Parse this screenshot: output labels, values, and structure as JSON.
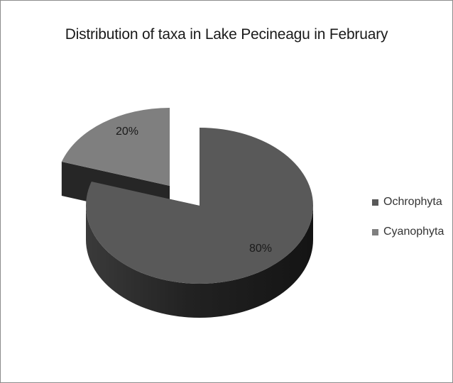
{
  "chart_data": {
    "type": "pie",
    "title": "Distribution of taxa in Lake Pecineagu in February",
    "slices": [
      {
        "name": "Ochrophyta",
        "value": 80,
        "label": "80%",
        "color": "#595959"
      },
      {
        "name": "Cyanophyta",
        "value": 20,
        "label": "20%",
        "color": "#7f7f7f"
      }
    ],
    "legend_position": "right",
    "style": "3d-exploded"
  }
}
